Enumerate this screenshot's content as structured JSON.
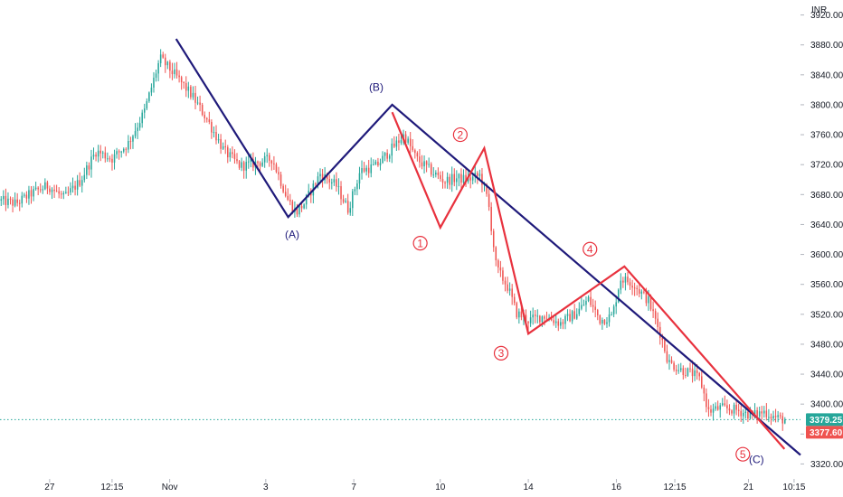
{
  "chart_data": {
    "type": "candlestick",
    "currency": "INR",
    "ylim": [
      3300,
      3940
    ],
    "y_ticks": [
      3320,
      3360,
      3400,
      3440,
      3480,
      3520,
      3560,
      3600,
      3640,
      3680,
      3720,
      3760,
      3800,
      3840,
      3880,
      3920
    ],
    "y_tick_labels": [
      "3320.00",
      "3360.00",
      "3400.00",
      "3440.00",
      "3480.00",
      "3520.00",
      "3560.00",
      "3600.00",
      "3640.00",
      "3680.00",
      "3720.00",
      "3760.00",
      "3800.00",
      "3840.00",
      "3880.00",
      "3920.00"
    ],
    "x_range": [
      0,
      100
    ],
    "x_ticks": [
      {
        "x": 6.2,
        "label": "27"
      },
      {
        "x": 14.0,
        "label": "12:15"
      },
      {
        "x": 21.2,
        "label": "Nov"
      },
      {
        "x": 33.2,
        "label": "3"
      },
      {
        "x": 44.2,
        "label": "7"
      },
      {
        "x": 55.0,
        "label": "10"
      },
      {
        "x": 66.0,
        "label": "14"
      },
      {
        "x": 77.0,
        "label": "16"
      },
      {
        "x": 84.3,
        "label": "12:15"
      },
      {
        "x": 93.5,
        "label": "21"
      },
      {
        "x": 99.2,
        "label": "10:15"
      }
    ],
    "anchors": [
      [
        0,
        3672
      ],
      [
        2,
        3668
      ],
      [
        4,
        3682
      ],
      [
        6,
        3692
      ],
      [
        8,
        3675
      ],
      [
        10,
        3698
      ],
      [
        12,
        3738
      ],
      [
        14,
        3728
      ],
      [
        16,
        3748
      ],
      [
        18,
        3790
      ],
      [
        20,
        3862
      ],
      [
        22,
        3838
      ],
      [
        24,
        3812
      ],
      [
        26,
        3778
      ],
      [
        28,
        3738
      ],
      [
        30,
        3718
      ],
      [
        32,
        3722
      ],
      [
        34,
        3728
      ],
      [
        36,
        3672
      ],
      [
        37,
        3656
      ],
      [
        38,
        3668
      ],
      [
        40,
        3708
      ],
      [
        42,
        3692
      ],
      [
        43.5,
        3660
      ],
      [
        45,
        3712
      ],
      [
        47,
        3718
      ],
      [
        49,
        3742
      ],
      [
        50.5,
        3760
      ],
      [
        52,
        3728
      ],
      [
        54,
        3710
      ],
      [
        55.5,
        3698
      ],
      [
        57,
        3702
      ],
      [
        58.5,
        3700
      ],
      [
        60,
        3706
      ],
      [
        61,
        3670
      ],
      [
        62,
        3582
      ],
      [
        63.5,
        3555
      ],
      [
        64.5,
        3522
      ],
      [
        66,
        3512
      ],
      [
        68,
        3518
      ],
      [
        70,
        3508
      ],
      [
        72,
        3522
      ],
      [
        73.5,
        3540
      ],
      [
        75,
        3512
      ],
      [
        76.5,
        3518
      ],
      [
        77.5,
        3568
      ],
      [
        79,
        3562
      ],
      [
        81,
        3538
      ],
      [
        82.5,
        3494
      ],
      [
        83.5,
        3456
      ],
      [
        85,
        3446
      ],
      [
        86.5,
        3441
      ],
      [
        87.5,
        3432
      ],
      [
        88.5,
        3390
      ],
      [
        90,
        3395
      ],
      [
        92,
        3392
      ],
      [
        94,
        3385
      ],
      [
        95.5,
        3390
      ],
      [
        96.5,
        3384
      ],
      [
        97.5,
        3380
      ],
      [
        98.2,
        3379.25
      ]
    ],
    "wave_lines": [
      {
        "name": "abc",
        "color": "#1f1a7a",
        "points": [
          [
            22,
            3888
          ],
          [
            36,
            3650
          ],
          [
            49,
            3800
          ],
          [
            100,
            3332
          ]
        ]
      },
      {
        "name": "impulse",
        "color": "#e8323e",
        "points": [
          [
            49,
            3790
          ],
          [
            55,
            3636
          ],
          [
            60.5,
            3742
          ],
          [
            66,
            3494
          ],
          [
            78,
            3584
          ],
          [
            98,
            3340
          ]
        ]
      }
    ],
    "wave_labels": [
      {
        "text": "(A)",
        "x": 36.5,
        "y": 3627,
        "color": "#1f1a7a"
      },
      {
        "text": "(B)",
        "x": 47.0,
        "y": 3824,
        "color": "#1f1a7a"
      },
      {
        "text": "(C)",
        "x": 94.5,
        "y": 3326,
        "color": "#1f1a7a"
      },
      {
        "text": "1",
        "x": 52.5,
        "y": 3615,
        "color": "#e8323e",
        "circled": true
      },
      {
        "text": "2",
        "x": 57.5,
        "y": 3760,
        "color": "#e8323e",
        "circled": true
      },
      {
        "text": "3",
        "x": 62.6,
        "y": 3468,
        "color": "#e8323e",
        "circled": true
      },
      {
        "text": "4",
        "x": 73.7,
        "y": 3607,
        "color": "#e8323e",
        "circled": true
      },
      {
        "text": "5",
        "x": 92.8,
        "y": 3333,
        "color": "#e8323e",
        "circled": true
      }
    ],
    "last_price": 3379.25,
    "last_price_label": "3379.25",
    "secondary_price": 3377.6,
    "secondary_price_label": "3377.60",
    "colors": {
      "up": "#26a69a",
      "down": "#ef5350",
      "abc_wave": "#1f1a7a",
      "impulse_wave": "#e8323e",
      "axis_text": "#131722",
      "last_price_tag": "#26a69a",
      "secondary_price_tag": "#ef5350"
    }
  }
}
